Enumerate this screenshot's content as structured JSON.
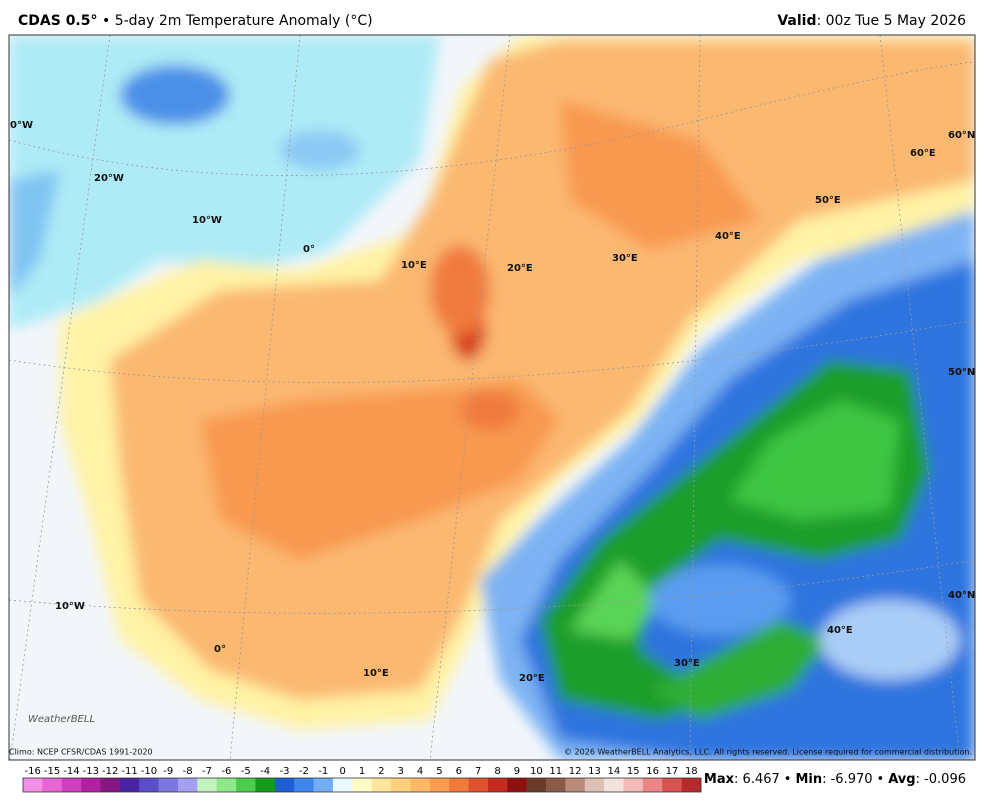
{
  "header": {
    "title": "CDAS 0.5°",
    "subtitle": "• 5-day 2m Temperature Anomaly (°C)",
    "valid_label": "Valid",
    "valid_text": ": 00z Tue 5 May 2026"
  },
  "map": {
    "grid_labels": [
      "0°W",
      "20°W",
      "10°W",
      "0°",
      "10°E",
      "20°E",
      "30°E",
      "40°E",
      "50°E",
      "60°E",
      "60°N",
      "50°N",
      "40°N",
      "10°W",
      "0°",
      "10°E",
      "20°E",
      "30°E",
      "40°E"
    ],
    "logo": "WeatherBELL"
  },
  "footer": {
    "climo": "Climo: NCEP CFSR/CDAS 1991-2020",
    "copyright": "© 2026 WeatherBELL Analytics, LLC. All rights reserved. License required for commercial distribution."
  },
  "colorbar": {
    "ticks": [
      -16,
      -15,
      -14,
      -13,
      -12,
      -11,
      -10,
      -9,
      -8,
      -7,
      -6,
      -5,
      -4,
      -3,
      -2,
      -1,
      0,
      1,
      2,
      3,
      4,
      5,
      6,
      7,
      8,
      9,
      10,
      11,
      12,
      13,
      14,
      15,
      16,
      17,
      18
    ],
    "colors": [
      "#f58ee8",
      "#e566d4",
      "#d03fbf",
      "#b0209f",
      "#861681",
      "#4a23a3",
      "#5a4fc8",
      "#7d77e0",
      "#a3a0ef",
      "#c2f2be",
      "#8ce888",
      "#4ccc4a",
      "#169c1c",
      "#1f5fd6",
      "#3f86ec",
      "#73aef5",
      "#e9f9fd",
      "#fffbc4",
      "#ffe49c",
      "#ffcf80",
      "#ffb86a",
      "#fa9c52",
      "#f07a3e",
      "#e0522c",
      "#c52a1e",
      "#8e1111",
      "#6a3b2a",
      "#8a5a48",
      "#b98a7a",
      "#dcc0b6",
      "#f3e1dc",
      "#f4b9b9",
      "#ea8686",
      "#d85252",
      "#b52a2a"
    ]
  },
  "stats": {
    "max_label": "Max",
    "max": ": 6.467",
    "sep1": "•",
    "min_label": "Min",
    "min": ": -6.970",
    "sep2": "•",
    "avg_label": "Avg",
    "avg": ": -0.096"
  }
}
